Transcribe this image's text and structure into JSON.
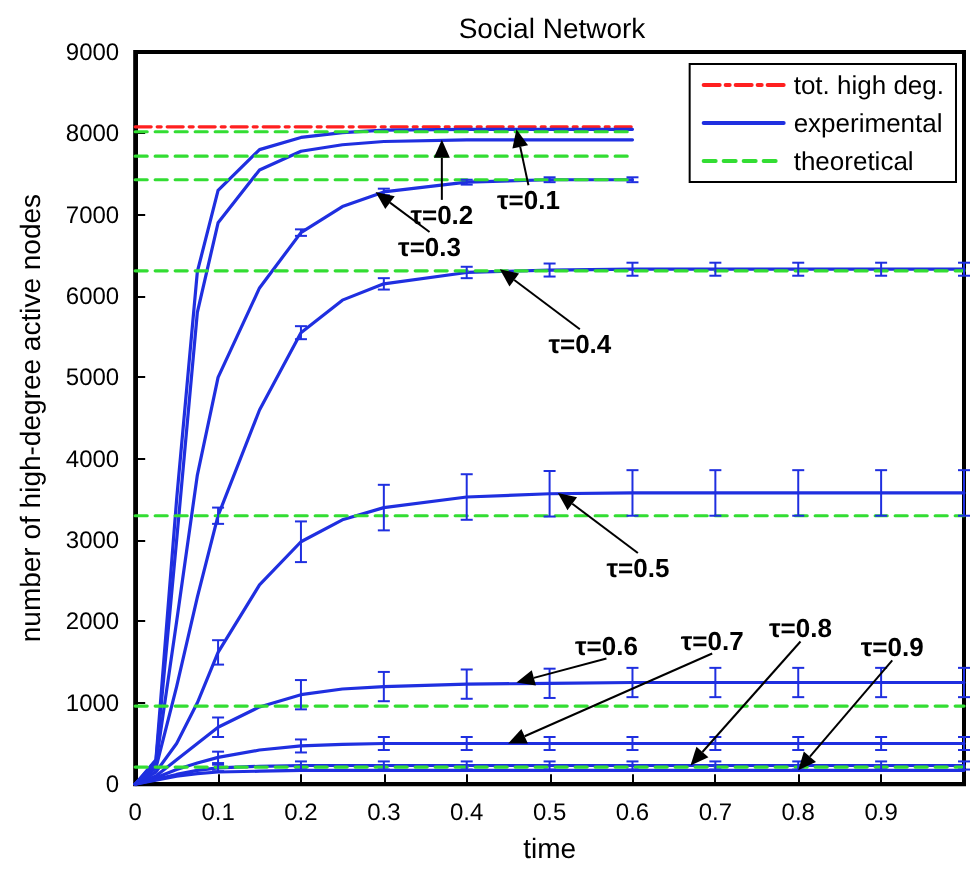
{
  "chart_data": {
    "type": "line",
    "title": "Social Network",
    "xlabel": "time",
    "ylabel": "number of high-degree active nodes",
    "x": [
      0,
      0.025,
      0.05,
      0.075,
      0.1,
      0.15,
      0.2,
      0.25,
      0.3,
      0.4,
      0.5,
      0.6,
      0.7,
      0.8,
      0.9,
      1.0
    ],
    "xlim": [
      0,
      1
    ],
    "xticks": [
      0,
      0.1,
      0.2,
      0.3,
      0.4,
      0.5,
      0.6,
      0.7,
      0.8,
      0.9
    ],
    "ylim": [
      0,
      9000
    ],
    "yticks": [
      0,
      1000,
      2000,
      3000,
      4000,
      5000,
      6000,
      7000,
      8000,
      9000
    ],
    "grid": false,
    "legend": "top right",
    "marker": "none",
    "series": [
      {
        "name": "tot. high deg.",
        "color": "#ff2020",
        "line_style": "dashdot",
        "values": [
          8080,
          8080,
          8080,
          8080,
          8080,
          8080,
          8080,
          8080,
          8080,
          8080,
          8080,
          8080,
          null,
          null,
          null,
          null
        ]
      },
      {
        "name": "experimental",
        "color": "#1f2fe0",
        "line_style": "solid",
        "values": [
          0,
          300,
          3500,
          6300,
          7300,
          7800,
          7950,
          8010,
          8040,
          8050,
          8050,
          8050,
          null,
          null,
          null,
          null
        ]
      },
      {
        "color": "#1f2fe0",
        "line_style": "solid",
        "values": [
          0,
          280,
          3000,
          5800,
          6900,
          7550,
          7780,
          7860,
          7900,
          7920,
          7920,
          7920,
          null,
          null,
          null,
          null
        ]
      },
      {
        "color": "#1f2fe0",
        "line_style": "solid",
        "values": [
          0,
          250,
          2000,
          3800,
          5000,
          6100,
          6780,
          7100,
          7280,
          7400,
          7430,
          7430,
          null,
          null,
          null,
          null
        ],
        "errors": [
          null,
          null,
          null,
          null,
          null,
          null,
          40,
          null,
          40,
          30,
          30,
          30,
          null,
          null,
          null,
          null
        ]
      },
      {
        "color": "#1f2fe0",
        "line_style": "solid",
        "values": [
          0,
          200,
          1200,
          2300,
          3300,
          4600,
          5550,
          5950,
          6150,
          6290,
          6320,
          6330,
          6330,
          6330,
          6330,
          6330
        ],
        "errors": [
          null,
          null,
          null,
          null,
          100,
          null,
          80,
          null,
          70,
          70,
          80,
          80,
          80,
          80,
          80,
          80
        ]
      },
      {
        "color": "#1f2fe0",
        "line_style": "solid",
        "values": [
          0,
          150,
          500,
          1000,
          1620,
          2450,
          2980,
          3250,
          3400,
          3530,
          3570,
          3580,
          3580,
          3580,
          3580,
          3580
        ],
        "errors": [
          null,
          null,
          null,
          null,
          150,
          null,
          250,
          null,
          280,
          280,
          280,
          280,
          280,
          280,
          280,
          280
        ]
      },
      {
        "color": "#1f2fe0",
        "line_style": "solid",
        "values": [
          0,
          100,
          300,
          500,
          700,
          950,
          1100,
          1170,
          1200,
          1230,
          1240,
          1250,
          1250,
          1250,
          1250,
          1250
        ],
        "errors": [
          null,
          null,
          null,
          null,
          120,
          null,
          180,
          null,
          180,
          180,
          180,
          180,
          180,
          180,
          180,
          180
        ]
      },
      {
        "color": "#1f2fe0",
        "line_style": "solid",
        "values": [
          0,
          80,
          180,
          260,
          330,
          420,
          470,
          490,
          500,
          500,
          500,
          500,
          500,
          500,
          500,
          500
        ],
        "errors": [
          null,
          null,
          null,
          null,
          70,
          null,
          80,
          null,
          80,
          80,
          80,
          80,
          80,
          80,
          80,
          80
        ]
      },
      {
        "color": "#1f2fe0",
        "line_style": "solid",
        "values": [
          0,
          60,
          120,
          170,
          200,
          220,
          230,
          230,
          230,
          230,
          230,
          230,
          230,
          230,
          230,
          230
        ],
        "errors": [
          null,
          null,
          null,
          null,
          40,
          null,
          50,
          null,
          50,
          50,
          50,
          50,
          50,
          50,
          50,
          50
        ]
      },
      {
        "color": "#1f2fe0",
        "line_style": "solid",
        "values": [
          0,
          50,
          100,
          130,
          150,
          160,
          170,
          170,
          170,
          170,
          170,
          170,
          170,
          170,
          170,
          170
        ]
      },
      {
        "name": "theoretical",
        "color": "#33dd33",
        "line_style": "dashed",
        "values": [
          8020,
          8020,
          8020,
          8020,
          8020,
          8020,
          8020,
          8020,
          8020,
          8020,
          8020,
          8020,
          null,
          null,
          null,
          null
        ]
      },
      {
        "color": "#33dd33",
        "line_style": "dashed",
        "values": [
          7720,
          7720,
          7720,
          7720,
          7720,
          7720,
          7720,
          7720,
          7720,
          7720,
          7720,
          7720,
          null,
          null,
          null,
          null
        ]
      },
      {
        "color": "#33dd33",
        "line_style": "dashed",
        "values": [
          7430,
          7430,
          7430,
          7430,
          7430,
          7430,
          7430,
          7430,
          7430,
          7430,
          7430,
          7430,
          null,
          null,
          null,
          null
        ]
      },
      {
        "color": "#33dd33",
        "line_style": "dashed",
        "values": [
          6310,
          6310,
          6310,
          6310,
          6310,
          6310,
          6310,
          6310,
          6310,
          6310,
          6310,
          6310,
          6310,
          6310,
          6310,
          6310
        ]
      },
      {
        "color": "#33dd33",
        "line_style": "dashed",
        "values": [
          3300,
          3300,
          3300,
          3300,
          3300,
          3300,
          3300,
          3300,
          3300,
          3300,
          3300,
          3300,
          3300,
          3300,
          3300,
          3300
        ]
      },
      {
        "color": "#33dd33",
        "line_style": "dashed",
        "values": [
          960,
          960,
          960,
          960,
          960,
          960,
          960,
          960,
          960,
          960,
          960,
          960,
          960,
          960,
          960,
          960
        ]
      },
      {
        "color": "#33dd33",
        "line_style": "dashed",
        "values": [
          210,
          210,
          210,
          210,
          210,
          210,
          210,
          210,
          210,
          210,
          210,
          210,
          210,
          210,
          210,
          210
        ]
      }
    ],
    "annotations": [
      {
        "text": "τ=0.1",
        "x": 0.46,
        "y": 8050
      },
      {
        "text": "τ=0.2",
        "x": 0.37,
        "y": 7920
      },
      {
        "text": "τ=0.3",
        "x": 0.29,
        "y": 7280
      },
      {
        "text": "τ=0.4",
        "x": 0.44,
        "y": 6330
      },
      {
        "text": "τ=0.5",
        "x": 0.51,
        "y": 3580
      },
      {
        "text": "τ=0.6",
        "x": 0.46,
        "y": 1250
      },
      {
        "text": "τ=0.7",
        "x": 0.45,
        "y": 500
      },
      {
        "text": "τ=0.8",
        "x": 0.67,
        "y": 230
      },
      {
        "text": "τ=0.9",
        "x": 0.8,
        "y": 170
      }
    ]
  }
}
